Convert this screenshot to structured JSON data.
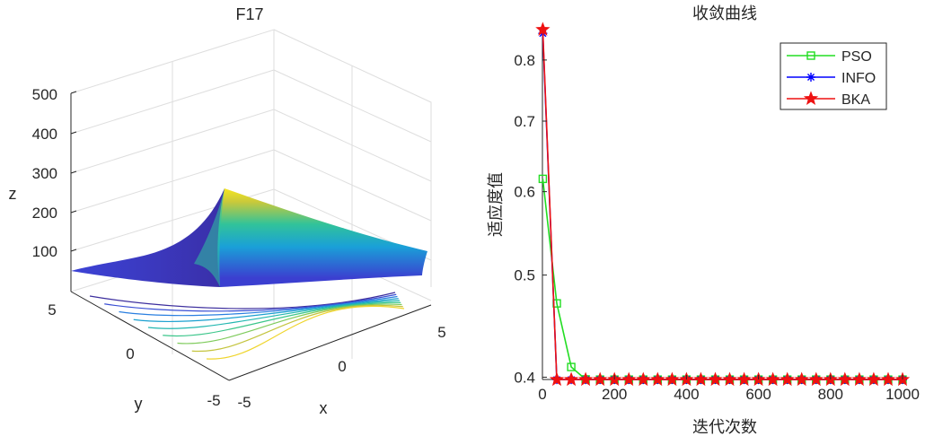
{
  "chart_data": [
    {
      "type": "surface",
      "title": "F17",
      "xlabel": "x",
      "ylabel": "y",
      "zlabel": "z",
      "x_ticks": [
        "-5",
        "0",
        "5"
      ],
      "y_ticks": [
        "-5",
        "0",
        "5"
      ],
      "z_ticks": [
        "100",
        "200",
        "300",
        "400",
        "500"
      ],
      "xlim": [
        -5,
        5
      ],
      "ylim": [
        -5,
        5
      ],
      "zlim": [
        0,
        500
      ],
      "grid": true,
      "colormap": "parula",
      "contour_levels_on_floor": true
    },
    {
      "type": "line",
      "title": "收敛曲线",
      "xlabel": "迭代次数",
      "ylabel": "适应度值",
      "xlim": [
        0,
        1000
      ],
      "ylim": [
        0.398,
        0.86
      ],
      "y_scale": "log",
      "x_ticks": [
        "0",
        "200",
        "400",
        "600",
        "800",
        "1000"
      ],
      "y_ticks": [
        "0.4",
        "0.5",
        "0.6",
        "0.7",
        "0.8"
      ],
      "legend_position": "top-right",
      "x": [
        1,
        40,
        80,
        120,
        160,
        200,
        240,
        280,
        320,
        360,
        400,
        440,
        480,
        520,
        560,
        600,
        640,
        680,
        720,
        760,
        800,
        840,
        880,
        920,
        960,
        1000
      ],
      "series": [
        {
          "name": "PSO",
          "color": "#22dd22",
          "marker": "square",
          "values": [
            0.617,
            0.47,
            0.409,
            0.3981,
            0.3979,
            0.3979,
            0.3979,
            0.3979,
            0.3979,
            0.3979,
            0.3979,
            0.3979,
            0.3979,
            0.3979,
            0.3979,
            0.3979,
            0.3979,
            0.3979,
            0.3979,
            0.3979,
            0.3979,
            0.3979,
            0.3979,
            0.3979,
            0.3979,
            0.3979
          ]
        },
        {
          "name": "INFO",
          "color": "#0000ff",
          "marker": "asterisk",
          "values": [
            0.848,
            0.3979,
            0.3979,
            0.3979,
            0.3979,
            0.3979,
            0.3979,
            0.3979,
            0.3979,
            0.3979,
            0.3979,
            0.3979,
            0.3979,
            0.3979,
            0.3979,
            0.3979,
            0.3979,
            0.3979,
            0.3979,
            0.3979,
            0.3979,
            0.3979,
            0.3979,
            0.3979,
            0.3979,
            0.3979
          ]
        },
        {
          "name": "BKA",
          "color": "#ee1111",
          "marker": "pentagram",
          "values": [
            0.855,
            0.3979,
            0.3979,
            0.3979,
            0.3979,
            0.3979,
            0.3979,
            0.3979,
            0.3979,
            0.3979,
            0.3979,
            0.3979,
            0.3979,
            0.3979,
            0.3979,
            0.3979,
            0.3979,
            0.3979,
            0.3979,
            0.3979,
            0.3979,
            0.3979,
            0.3979,
            0.3979,
            0.3979,
            0.3979
          ]
        }
      ]
    }
  ]
}
